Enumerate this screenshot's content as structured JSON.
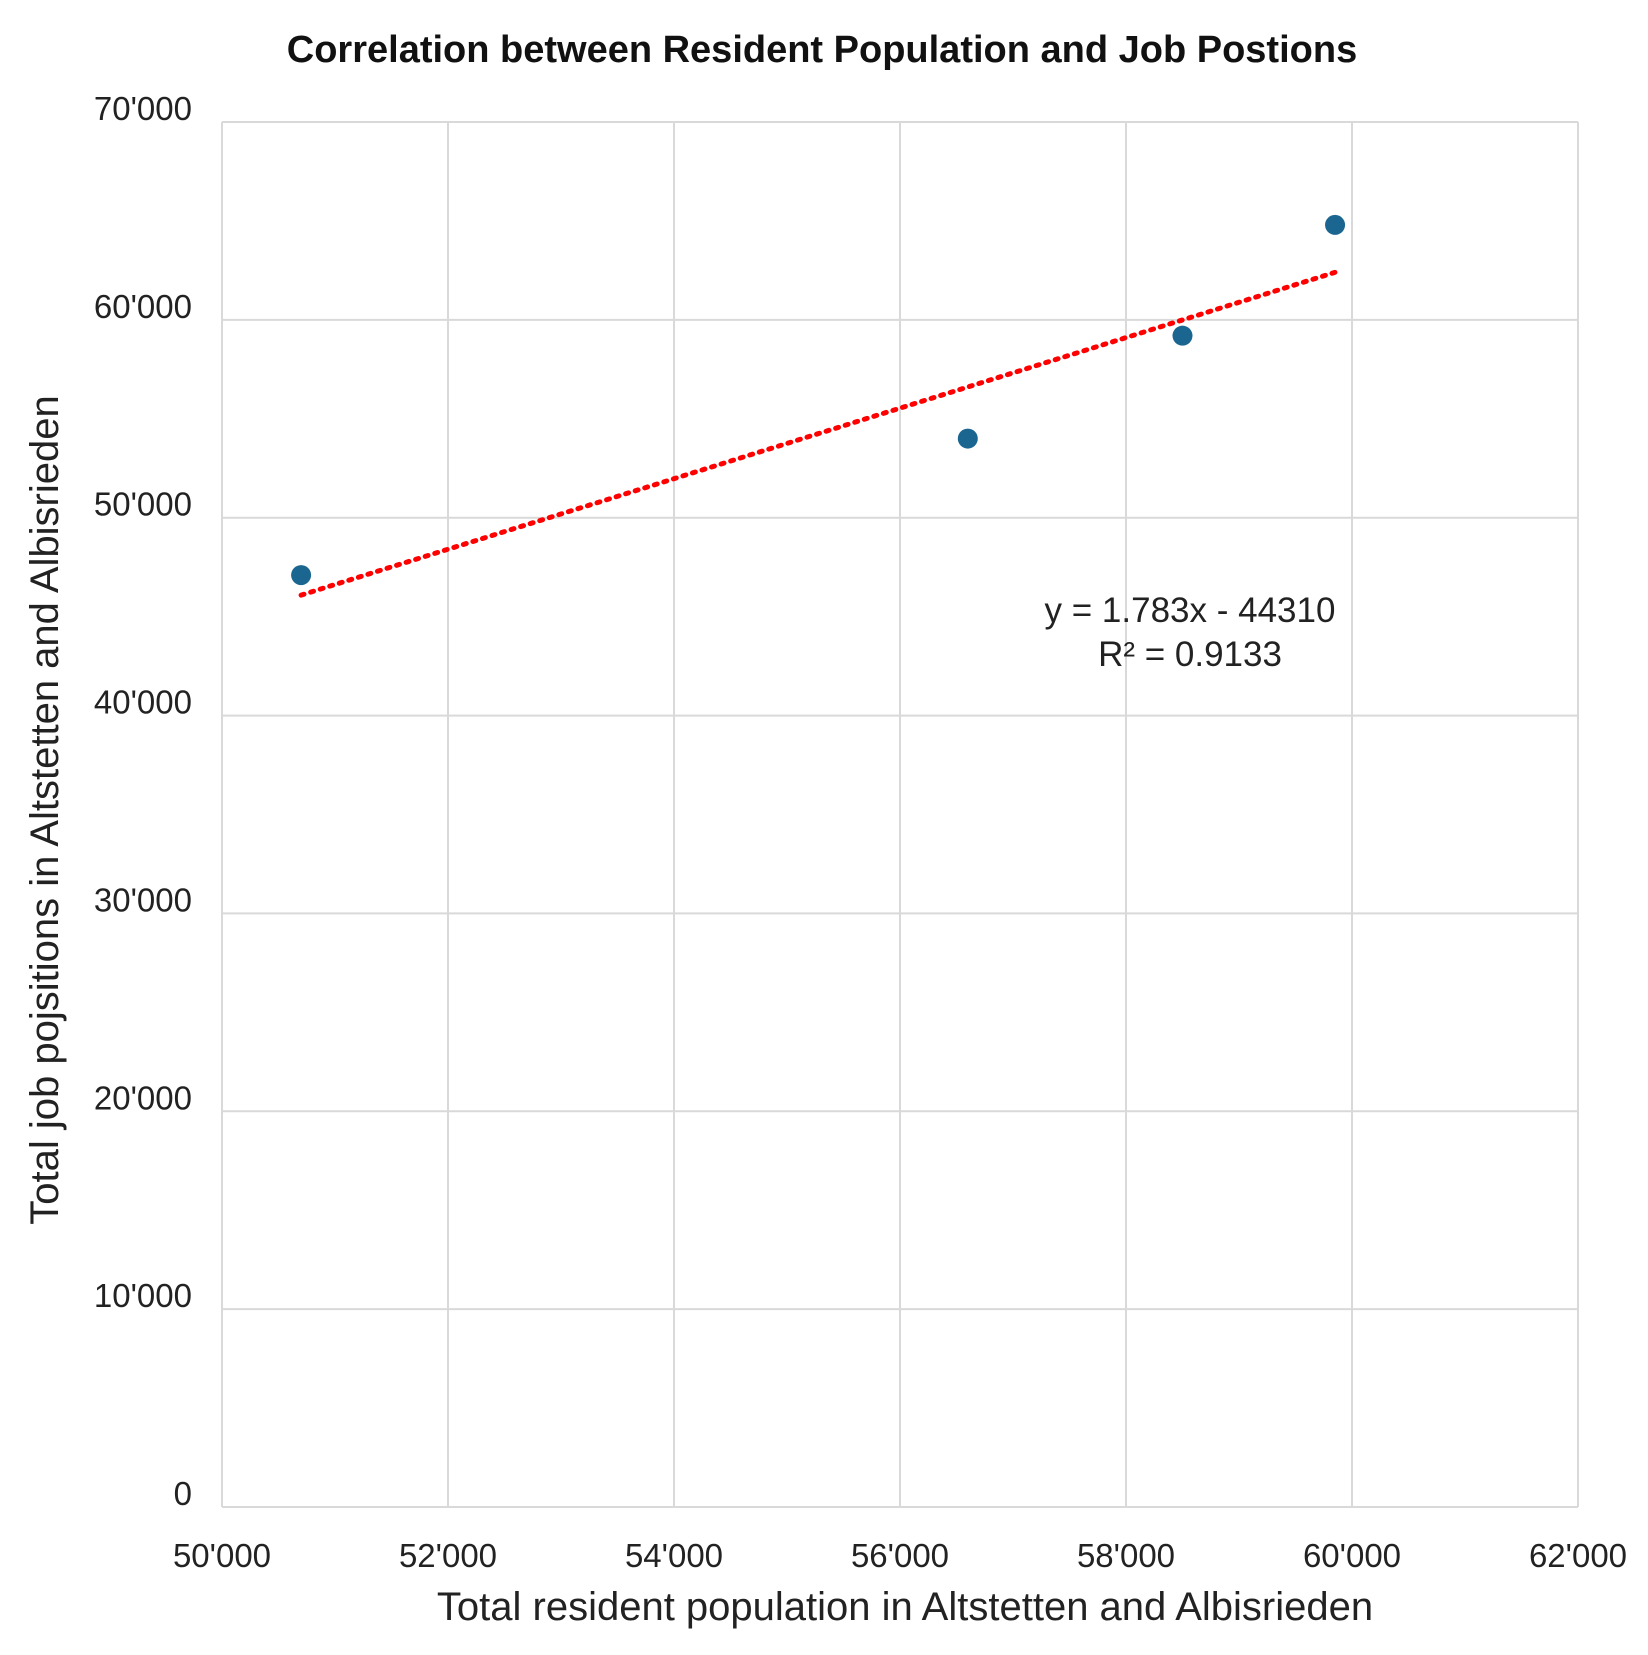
{
  "chart_data": {
    "type": "scatter",
    "title": "Correlation between Resident Population and Job Postions",
    "xlabel": "Total resident population in Altstetten and Albisrieden",
    "ylabel": "Total job pojsitions in Altstetten and Albisrieden",
    "xlim": [
      50000,
      62000
    ],
    "ylim": [
      0,
      70000
    ],
    "x_ticks": [
      50000,
      52000,
      54000,
      56000,
      58000,
      60000,
      62000
    ],
    "y_ticks": [
      0,
      10000,
      20000,
      30000,
      40000,
      50000,
      60000,
      70000
    ],
    "x_tick_labels": [
      "50'000",
      "52'000",
      "54'000",
      "56'000",
      "58'000",
      "60'000",
      "62'000"
    ],
    "y_tick_labels": [
      "0",
      "10'000",
      "20'000",
      "30'000",
      "40'000",
      "50'000",
      "60'000",
      "70'000"
    ],
    "grid": true,
    "series": [
      {
        "points": [
          {
            "x": 50700,
            "y": 47100
          },
          {
            "x": 56600,
            "y": 54000
          },
          {
            "x": 58500,
            "y": 59200
          },
          {
            "x": 59850,
            "y": 64800
          }
        ],
        "color": "#1a6690"
      }
    ],
    "trendline": {
      "type": "linear",
      "slope": 1.783,
      "intercept": -44310,
      "x_range": [
        50700,
        59850
      ],
      "color": "#ff0000",
      "style": "dotted",
      "equation_label": "y = 1.783x - 44310",
      "r2_label": "R² = 0.9133"
    }
  }
}
